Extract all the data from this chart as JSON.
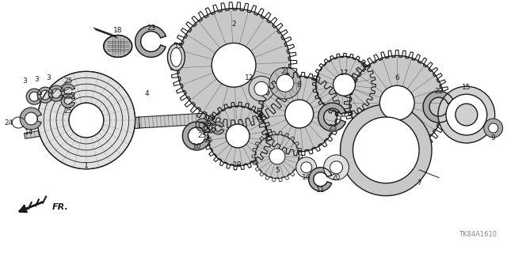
{
  "bg_color": "#ffffff",
  "line_color": "#1a1a1a",
  "fig_width": 6.4,
  "fig_height": 3.2,
  "dpi": 100,
  "diagram_code": "TK84A1610",
  "fr_label": "FR."
}
